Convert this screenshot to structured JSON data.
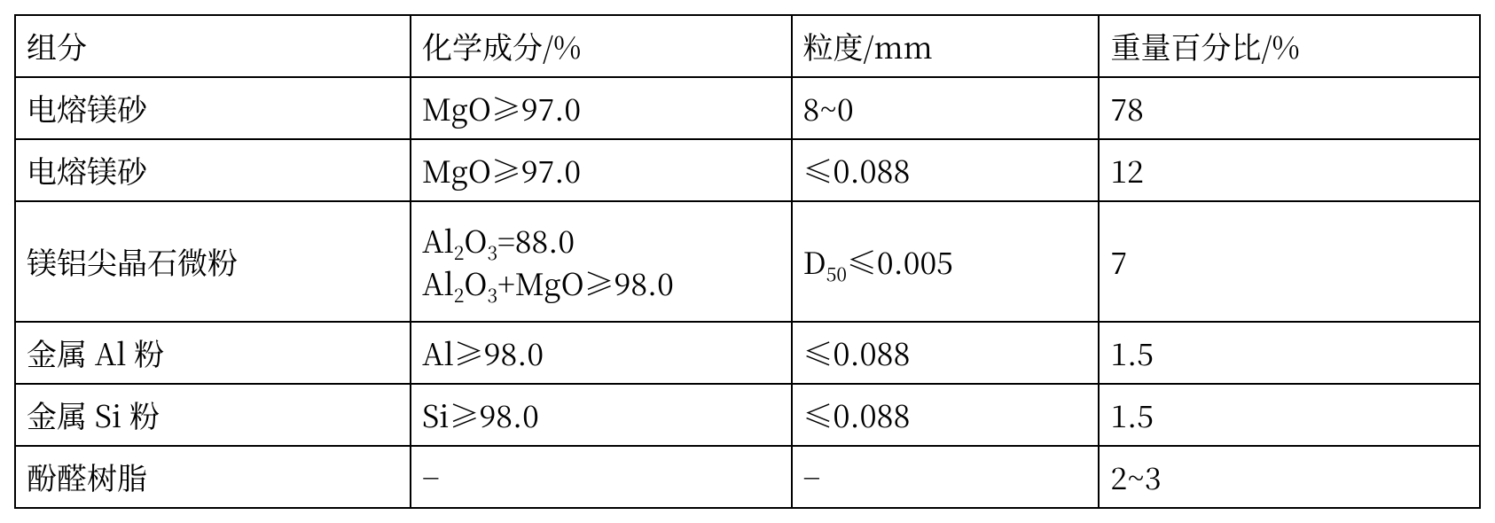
{
  "table": {
    "font_family": "serif",
    "font_size_pt": 20,
    "border_color": "#000000",
    "background_color": "#ffffff",
    "text_color": "#000000",
    "columns": [
      {
        "key": "component",
        "width_pct": 27
      },
      {
        "key": "chem",
        "width_pct": 26
      },
      {
        "key": "granularity",
        "width_pct": 21
      },
      {
        "key": "weight",
        "width_pct": 26
      }
    ],
    "header": {
      "component": "组分",
      "chem": "化学成分/%",
      "granularity": "粒度/mm",
      "weight": "重量百分比/%"
    },
    "rows": [
      {
        "component": "电熔镁砂",
        "chem": "MgO≥97.0",
        "granularity": "8~0",
        "weight": "78"
      },
      {
        "component": "电熔镁砂",
        "chem": "MgO≥97.0",
        "granularity": "≤0.088",
        "weight": "12"
      },
      {
        "component": "镁铝尖晶石微粉",
        "chem_line1": {
          "pre": "Al",
          "sub1": "2",
          "mid": "O",
          "sub2": "3",
          "post": "=88.0"
        },
        "chem_line2": {
          "pre": "Al",
          "sub1": "2",
          "mid": "O",
          "sub2": "3",
          "post": "+MgO≥98.0"
        },
        "granularity_rich": {
          "pre": "D",
          "sub": "50",
          "post": "≤0.005"
        },
        "weight": "7",
        "tall": true
      },
      {
        "component": "金属 Al 粉",
        "chem": "Al≥98.0",
        "granularity": "≤0.088",
        "weight": "1.5"
      },
      {
        "component": "金属 Si 粉",
        "chem": "Si≥98.0",
        "granularity": "≤0.088",
        "weight": "1.5"
      },
      {
        "component": "酚醛树脂",
        "chem": "−",
        "granularity": "−",
        "weight": "2~3"
      }
    ]
  }
}
